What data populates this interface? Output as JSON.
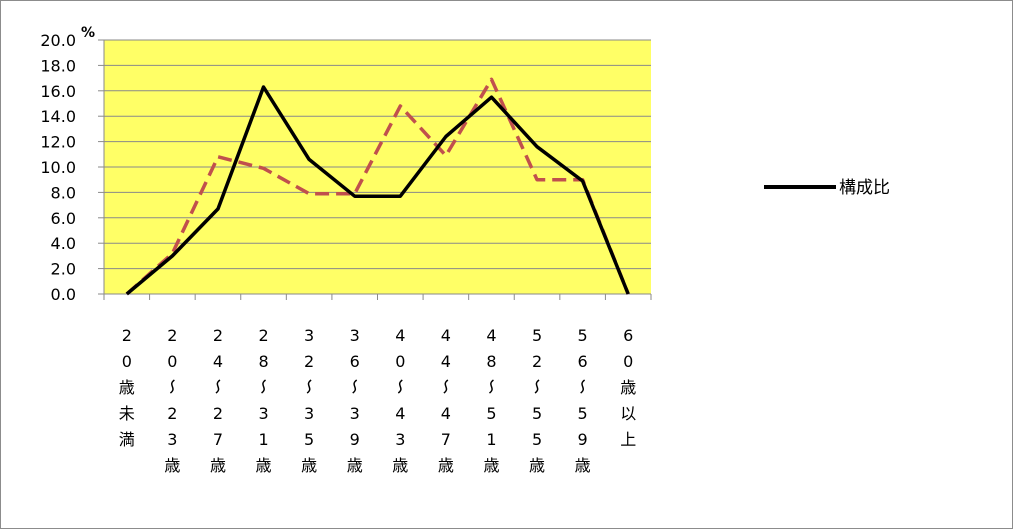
{
  "chart_data": {
    "type": "line",
    "title": "",
    "unit_label": "%",
    "ylim": [
      0,
      20
    ],
    "ytick_step": 2,
    "ytick_labels": [
      "0.0",
      "2.0",
      "4.0",
      "6.0",
      "8.0",
      "10.0",
      "12.0",
      "14.0",
      "16.0",
      "18.0",
      "20.0"
    ],
    "grid": true,
    "plot_background": "#ffff66",
    "legend_position": "right",
    "categories": [
      "20歳未満",
      "20～23歳",
      "24～27歳",
      "28～31歳",
      "32～35歳",
      "36～39歳",
      "40～43歳",
      "44～47歳",
      "48～51歳",
      "52～55歳",
      "56～59歳",
      "60歳以上"
    ],
    "category_labels_vertical": [
      [
        "2",
        "0",
        "歳",
        "未",
        "満"
      ],
      [
        "2",
        "0",
        "ﾍ",
        "2",
        "3",
        "歳"
      ],
      [
        "2",
        "4",
        "ﾍ",
        "2",
        "7",
        "歳"
      ],
      [
        "2",
        "8",
        "ﾍ",
        "3",
        "1",
        "歳"
      ],
      [
        "3",
        "2",
        "ﾍ",
        "3",
        "5",
        "歳"
      ],
      [
        "3",
        "6",
        "ﾍ",
        "3",
        "9",
        "歳"
      ],
      [
        "4",
        "0",
        "ﾍ",
        "4",
        "3",
        "歳"
      ],
      [
        "4",
        "4",
        "ﾍ",
        "4",
        "7",
        "歳"
      ],
      [
        "4",
        "8",
        "ﾍ",
        "5",
        "1",
        "歳"
      ],
      [
        "5",
        "2",
        "ﾍ",
        "5",
        "5",
        "歳"
      ],
      [
        "5",
        "6",
        "ﾍ",
        "5",
        "9",
        "歳"
      ],
      [
        "6",
        "0",
        "歳",
        "以",
        "上"
      ]
    ],
    "series": [
      {
        "name": "構成比",
        "color": "#000000",
        "style": "solid",
        "values": [
          0.0,
          3.0,
          6.7,
          16.3,
          10.6,
          7.7,
          7.7,
          12.4,
          15.5,
          11.6,
          8.9,
          0.0
        ]
      },
      {
        "name": "",
        "color": "#c0504d",
        "style": "dashed",
        "values": [
          0.0,
          3.2,
          10.8,
          9.9,
          7.9,
          7.9,
          14.8,
          10.9,
          16.9,
          9.0,
          9.0,
          0.0
        ]
      }
    ]
  }
}
